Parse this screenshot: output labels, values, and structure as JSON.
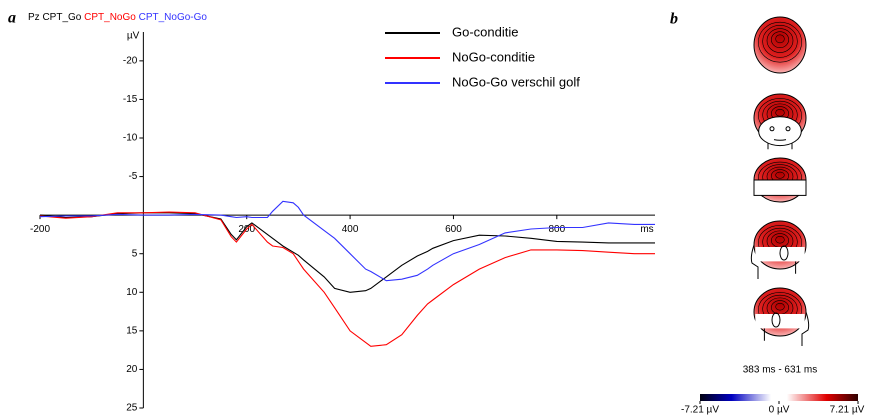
{
  "chart_data": [
    {
      "type": "line",
      "panel": "a",
      "channel": "Pz",
      "trace_labels": [
        "CPT_Go",
        "CPT_NoGo",
        "CPT_NoGo-Go"
      ],
      "xlabel": "ms",
      "ylabel": "µV",
      "y_inverted": true,
      "x": [
        -200,
        -150,
        -100,
        -50,
        0,
        50,
        100,
        150,
        170,
        180,
        200,
        210,
        240,
        250,
        270,
        290,
        300,
        310,
        350,
        370,
        400,
        430,
        440,
        470,
        500,
        530,
        550,
        560,
        600,
        650,
        700,
        750,
        800,
        850,
        900,
        950,
        990
      ],
      "series": [
        {
          "name": "Go-conditie",
          "color": "#000000",
          "values": [
            0,
            0.3,
            0.2,
            -0.2,
            -0.3,
            -0.3,
            -0.2,
            0.5,
            2.5,
            3.2,
            1.5,
            1,
            2.5,
            3,
            4,
            4.8,
            5.2,
            5.8,
            8,
            9.5,
            10,
            9.8,
            9.5,
            8,
            6.5,
            5.3,
            4.7,
            4.3,
            3.3,
            2.6,
            2.7,
            3,
            3.4,
            3.5,
            3.6,
            3.6,
            3.6
          ]
        },
        {
          "name": "NoGo-conditie",
          "color": "#ff0000",
          "values": [
            0.1,
            0.4,
            0.2,
            -0.3,
            -0.3,
            -0.4,
            -0.3,
            0.6,
            2.8,
            3.5,
            1.8,
            1.2,
            3.5,
            4,
            4.2,
            5,
            6,
            7,
            10,
            12,
            15,
            16.5,
            17,
            16.8,
            15.5,
            13,
            11.5,
            11,
            9,
            7,
            5.5,
            4.5,
            4.5,
            4.6,
            4.8,
            5,
            5
          ]
        },
        {
          "name": "NoGo-Go verschil golf",
          "color": "#3333ff",
          "values": [
            0.2,
            0.1,
            0.1,
            -0.1,
            0,
            0,
            -0.1,
            0,
            0.2,
            0.3,
            0.2,
            0.3,
            0.3,
            -0.5,
            -1.8,
            -1.6,
            -1,
            0,
            2,
            3,
            5,
            7,
            7.3,
            8.5,
            8.3,
            7.8,
            7,
            6.5,
            5,
            3.8,
            2.3,
            1.8,
            1.6,
            1.6,
            1,
            1.2,
            1.2
          ]
        }
      ],
      "xlim": [
        -200,
        990
      ],
      "ylim": [
        -24,
        25
      ],
      "xticks": [
        -200,
        200,
        400,
        600,
        800
      ],
      "yticks": [
        -20,
        -15,
        -10,
        -5,
        5,
        10,
        15,
        20,
        25
      ]
    },
    {
      "type": "topomap",
      "panel": "b",
      "time_range": "383 ms - 631 ms",
      "colorbar_lim": [
        -7.21,
        7.21
      ],
      "colorbar_ticks": [
        {
          "value": -7.21,
          "label": "-7.21 µV"
        },
        {
          "value": 0,
          "label": "0 µV"
        },
        {
          "value": 7.21,
          "label": "7.21 µV"
        }
      ]
    }
  ]
}
